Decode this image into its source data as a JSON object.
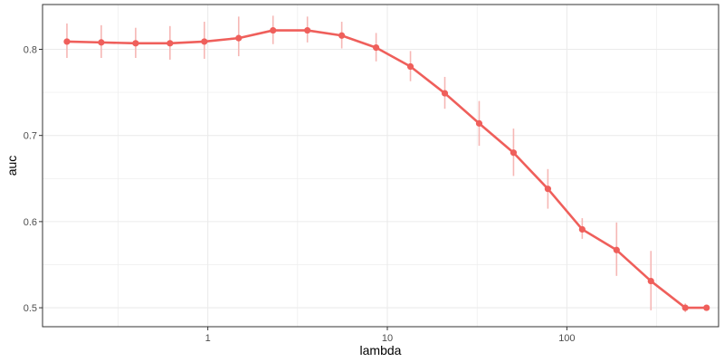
{
  "chart_data": {
    "type": "line",
    "title": "",
    "xlabel": "lambda",
    "ylabel": "auc",
    "x_scale": "log",
    "xlim": [
      0.12,
      700
    ],
    "ylim": [
      0.478,
      0.852
    ],
    "x_ticks": [
      {
        "value": 1,
        "label": "1"
      },
      {
        "value": 10,
        "label": "10"
      },
      {
        "value": 100,
        "label": "100"
      }
    ],
    "x_minor_ticks": [
      0.3162,
      3.162,
      31.62,
      316.2
    ],
    "y_ticks": [
      {
        "value": 0.5,
        "label": "0.5"
      },
      {
        "value": 0.6,
        "label": "0.6"
      },
      {
        "value": 0.7,
        "label": "0.7"
      },
      {
        "value": 0.8,
        "label": "0.8"
      }
    ],
    "y_minor_ticks": [
      0.55,
      0.65,
      0.75
    ],
    "grid": true,
    "legend": "none",
    "colors": {
      "line": "#ef5f5b",
      "error_bar": "#f6b7b5",
      "grid": "#ebebeb",
      "panel_border": "#333333"
    },
    "series": [
      {
        "x": [
          0.1641,
          0.2549,
          0.3961,
          0.6154,
          0.9562,
          1.4856,
          2.3082,
          3.5863,
          5.5721,
          8.6574,
          13.4511,
          20.8991,
          32.4713,
          50.4508,
          78.3858,
          121.789,
          189.225,
          294.0,
          456.79,
          600.0
        ],
        "y": [
          0.809,
          0.808,
          0.807,
          0.807,
          0.809,
          0.813,
          0.822,
          0.822,
          0.816,
          0.802,
          0.78,
          0.749,
          0.714,
          0.68,
          0.638,
          0.591,
          0.567,
          0.531,
          0.5,
          0.5
        ],
        "y_low": [
          0.79,
          0.79,
          0.79,
          0.788,
          0.789,
          0.792,
          0.806,
          0.808,
          0.801,
          0.786,
          0.763,
          0.731,
          0.688,
          0.653,
          0.615,
          0.58,
          0.537,
          0.497,
          0.495,
          0.498
        ],
        "y_high": [
          0.83,
          0.828,
          0.825,
          0.827,
          0.832,
          0.838,
          0.839,
          0.838,
          0.832,
          0.819,
          0.798,
          0.768,
          0.74,
          0.708,
          0.661,
          0.604,
          0.599,
          0.566,
          0.505,
          0.502
        ]
      }
    ]
  }
}
